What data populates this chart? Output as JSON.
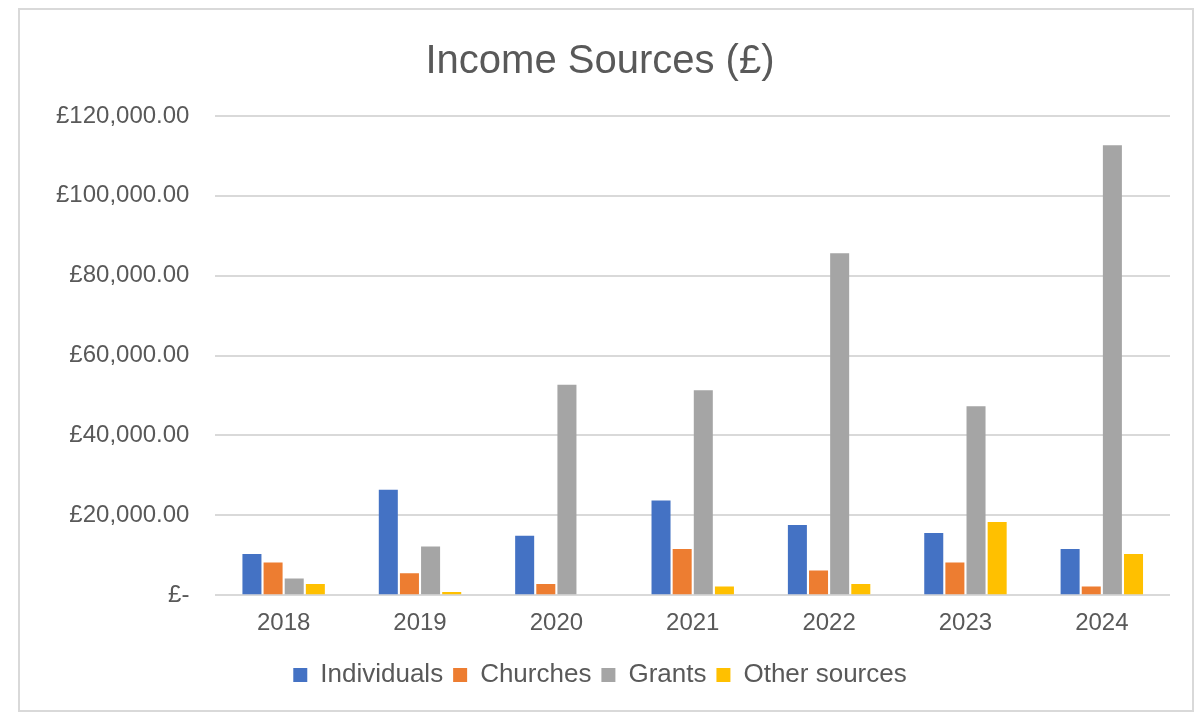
{
  "chart_data": {
    "type": "bar",
    "title": "Income Sources (£)",
    "categories": [
      "2018",
      "2019",
      "2020",
      "2021",
      "2022",
      "2023",
      "2024"
    ],
    "series": [
      {
        "name": "Individuals",
        "color": "#4472c4",
        "values": [
          10300,
          26400,
          14900,
          23700,
          17600,
          15600,
          11600
        ]
      },
      {
        "name": "Churches",
        "color": "#ed7d31",
        "values": [
          8200,
          5500,
          2800,
          11600,
          6200,
          8200,
          2200
        ]
      },
      {
        "name": "Grants",
        "color": "#a5a5a5",
        "values": [
          4200,
          12200,
          52700,
          51300,
          85600,
          47300,
          112700
        ]
      },
      {
        "name": "Other sources",
        "color": "#ffc000",
        "values": [
          2800,
          800,
          0,
          2200,
          2800,
          18300,
          10300
        ]
      }
    ],
    "ylim": [
      0,
      120000
    ],
    "yticks": [
      {
        "value": 0,
        "label": "£-"
      },
      {
        "value": 20000,
        "label": "£20,000.00"
      },
      {
        "value": 40000,
        "label": "£40,000.00"
      },
      {
        "value": 60000,
        "label": "£60,000.00"
      },
      {
        "value": 80000,
        "label": "£80,000.00"
      },
      {
        "value": 100000,
        "label": "£100,000.00"
      },
      {
        "value": 120000,
        "label": "£120,000.00"
      }
    ],
    "grid": "y",
    "legend": "bottom"
  }
}
